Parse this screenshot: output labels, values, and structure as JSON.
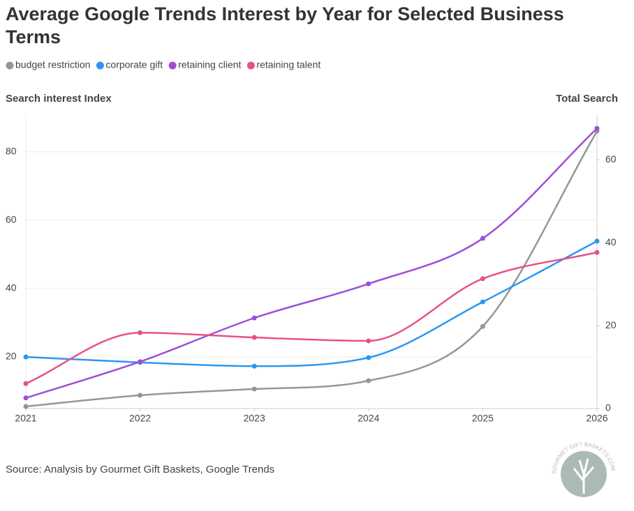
{
  "chart_data": {
    "type": "line",
    "title": "Average Google Trends Interest by Year for Selected Business Terms",
    "ylabel": "Search interest Index",
    "y2label": "Total Search",
    "source": "Source: Analysis by Gourmet Gift Baskets, Google Trends",
    "watermark": "GOURMET GIFT BASKETS.COM",
    "x": [
      2021,
      2022,
      2023,
      2024,
      2025,
      2026
    ],
    "xlim": [
      2021,
      2026
    ],
    "xticks": [
      2021,
      2022,
      2023,
      2024,
      2025,
      2026
    ],
    "ylim": [
      4.9,
      90.8
    ],
    "yticks": [
      20,
      40,
      60,
      80
    ],
    "y2lim": [
      0,
      70.8
    ],
    "y2ticks": [
      0,
      20,
      40,
      60
    ],
    "grid": true,
    "series": [
      {
        "name": "budget restriction",
        "color": "#8f9a98",
        "axis": "y2",
        "values": [
          0.5,
          3.2,
          4.7,
          6.7,
          19.8,
          66.9
        ]
      },
      {
        "name": "corporate gift",
        "color": "#2e96f0",
        "values": [
          20.0,
          18.4,
          17.3,
          19.8,
          36.1,
          53.9
        ]
      },
      {
        "name": "retaining client",
        "color": "#9b4fd8",
        "values": [
          8.0,
          18.6,
          31.4,
          41.4,
          54.7,
          86.9
        ]
      },
      {
        "name": "retaining talent",
        "color": "#e8508a",
        "values": [
          12.2,
          27.1,
          25.7,
          24.7,
          42.9,
          50.6
        ]
      }
    ]
  }
}
